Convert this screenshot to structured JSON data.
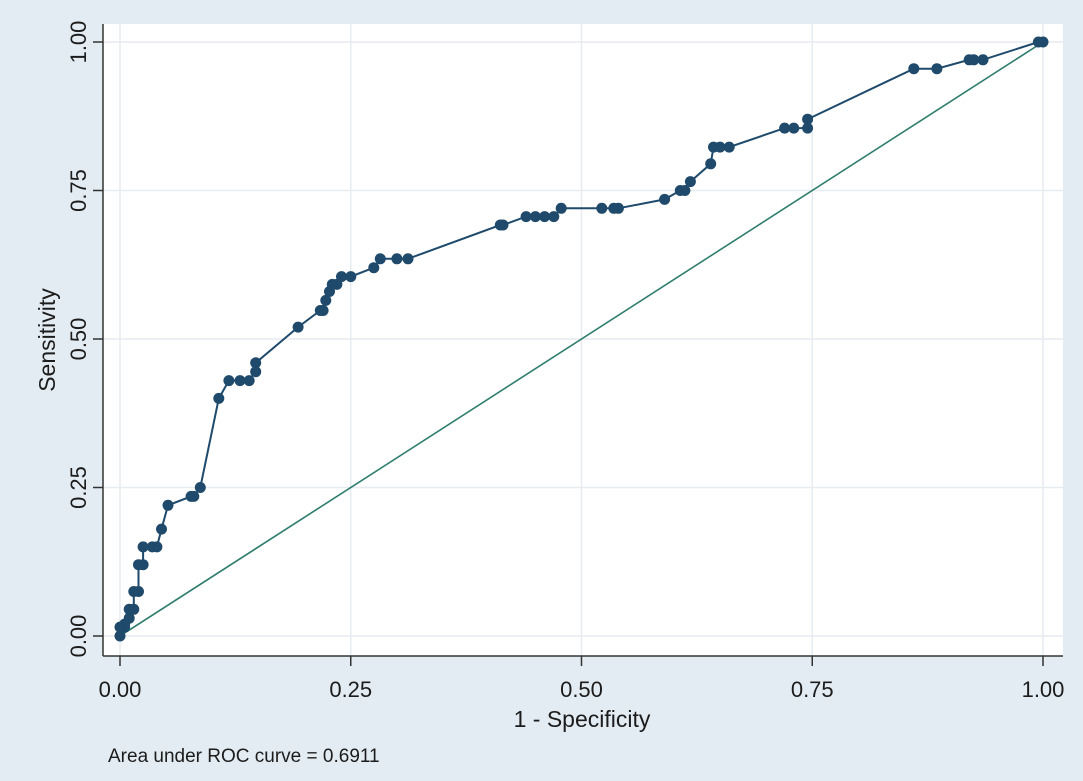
{
  "chart_data": {
    "type": "line",
    "xlabel": "1 - Specificity",
    "ylabel": "Sensitivity",
    "note": "Area under ROC curve = 0.6911",
    "xlim": [
      0,
      1
    ],
    "ylim": [
      0,
      1
    ],
    "x_ticks": [
      "0.00",
      "0.25",
      "0.50",
      "0.75",
      "1.00"
    ],
    "y_ticks": [
      "0.00",
      "0.25",
      "0.50",
      "0.75",
      "1.00"
    ],
    "grid": true,
    "colors": {
      "background": "#e3ecf2",
      "plot_bg": "#ffffff",
      "curve": "#1f4a6b",
      "reference": "#2e7d6d"
    },
    "series": [
      {
        "values": [
          [
            0.0,
            0.0
          ],
          [
            0.0,
            0.015
          ],
          [
            0.005,
            0.015
          ],
          [
            0.005,
            0.02
          ],
          [
            0.01,
            0.03
          ],
          [
            0.01,
            0.045
          ],
          [
            0.015,
            0.045
          ],
          [
            0.015,
            0.075
          ],
          [
            0.02,
            0.075
          ],
          [
            0.02,
            0.12
          ],
          [
            0.025,
            0.12
          ],
          [
            0.025,
            0.15
          ],
          [
            0.035,
            0.15
          ],
          [
            0.04,
            0.15
          ],
          [
            0.045,
            0.18
          ],
          [
            0.052,
            0.22
          ],
          [
            0.077,
            0.235
          ],
          [
            0.08,
            0.235
          ],
          [
            0.087,
            0.25
          ],
          [
            0.107,
            0.4
          ],
          [
            0.118,
            0.43
          ],
          [
            0.13,
            0.43
          ],
          [
            0.14,
            0.43
          ],
          [
            0.147,
            0.445
          ],
          [
            0.147,
            0.46
          ],
          [
            0.193,
            0.52
          ],
          [
            0.217,
            0.548
          ],
          [
            0.22,
            0.548
          ],
          [
            0.223,
            0.565
          ],
          [
            0.227,
            0.58
          ],
          [
            0.23,
            0.592
          ],
          [
            0.235,
            0.592
          ],
          [
            0.24,
            0.605
          ],
          [
            0.25,
            0.605
          ],
          [
            0.275,
            0.62
          ],
          [
            0.282,
            0.635
          ],
          [
            0.3,
            0.635
          ],
          [
            0.312,
            0.635
          ],
          [
            0.412,
            0.692
          ],
          [
            0.415,
            0.692
          ],
          [
            0.44,
            0.706
          ],
          [
            0.45,
            0.706
          ],
          [
            0.46,
            0.706
          ],
          [
            0.47,
            0.706
          ],
          [
            0.478,
            0.72
          ],
          [
            0.522,
            0.72
          ],
          [
            0.535,
            0.72
          ],
          [
            0.54,
            0.72
          ],
          [
            0.59,
            0.735
          ],
          [
            0.607,
            0.75
          ],
          [
            0.612,
            0.75
          ],
          [
            0.618,
            0.765
          ],
          [
            0.64,
            0.795
          ],
          [
            0.643,
            0.823
          ],
          [
            0.65,
            0.823
          ],
          [
            0.66,
            0.823
          ],
          [
            0.72,
            0.855
          ],
          [
            0.73,
            0.855
          ],
          [
            0.745,
            0.855
          ],
          [
            0.745,
            0.87
          ],
          [
            0.86,
            0.955
          ],
          [
            0.885,
            0.955
          ],
          [
            0.92,
            0.97
          ],
          [
            0.925,
            0.97
          ],
          [
            0.935,
            0.97
          ],
          [
            0.995,
            1.0
          ],
          [
            1.0,
            1.0
          ]
        ]
      },
      {
        "type": "reference",
        "values": [
          [
            0,
            0
          ],
          [
            1,
            1
          ]
        ]
      }
    ]
  }
}
